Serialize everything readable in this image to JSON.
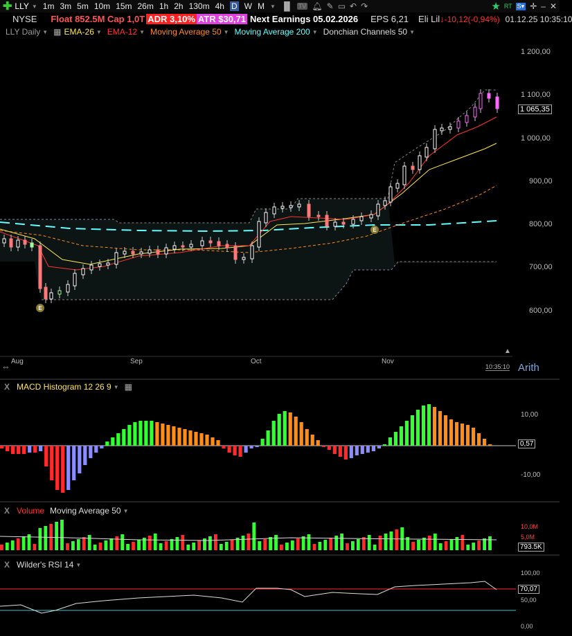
{
  "topbar": {
    "symbol": "LLY",
    "timeframes": [
      "1m",
      "3m",
      "5m",
      "10m",
      "15m",
      "26m",
      "1h",
      "2h",
      "130m",
      "4h",
      "D",
      "W",
      "M"
    ],
    "active_timeframe": "D"
  },
  "info": {
    "exchange": "NYSE",
    "float_cap": "Float 852.5M Cap 1,0T",
    "adr": "ADR  3,10%",
    "atr": "ATR $30,71",
    "next_earnings": "Next Earnings 05.02.2026",
    "eps": "EPS 6,21",
    "name": "Eli Lil",
    "change": "-10,12(-0,94%)",
    "datetime": "01.12.25 10:35:10"
  },
  "studies": {
    "chart": "LLY Daily",
    "ema26": "EMA-26",
    "ema12": "EMA-12",
    "ma50": "Moving Average 50",
    "ma200": "Moving Average 200",
    "donchian": "Donchian Channels 50"
  },
  "price_axis": {
    "labels": [
      "1 200,00",
      "1 100,00",
      "1 000,00",
      "900,00",
      "800,00",
      "700,00",
      "600,00"
    ],
    "current": "1 065,35"
  },
  "date_axis": {
    "labels": [
      "Aug",
      "Sep",
      "Oct",
      "Nov"
    ],
    "time": "10:35:10",
    "scale": "Arith"
  },
  "earnings_marker": "E",
  "macd": {
    "title": "MACD Histogram 12 26 9",
    "labels": [
      "10,00",
      "-10,00"
    ],
    "current": "0,57"
  },
  "volume": {
    "title": "Volume",
    "ma": "Moving Average 50",
    "labels": [
      "10,0M",
      "5,0M"
    ],
    "current": "793.5K"
  },
  "rsi": {
    "title": "Wilder's RSI 14",
    "labels": [
      "100,00",
      "50,00",
      "0,00"
    ],
    "current": "70,07"
  },
  "colors": {
    "up": "#33ff33",
    "down": "#ff2a2a",
    "orange": "#ff8c1a",
    "purple": "#8a8cff",
    "ema26": "#ffe84d",
    "ema12": "#ff3333",
    "ma50": "#ff8c1a",
    "ma200": "#66ffff",
    "adr_bg": "#ff2020",
    "atr_bg": "#e040e0",
    "float": "#ff5555"
  }
}
